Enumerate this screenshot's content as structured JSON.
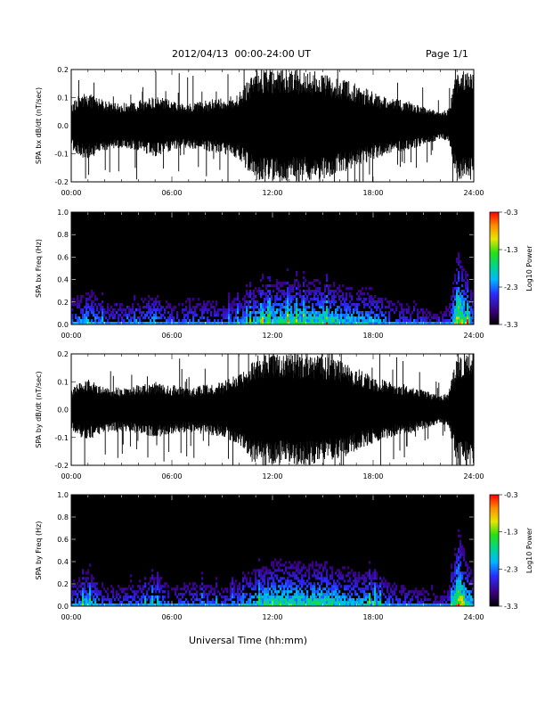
{
  "header": {
    "title": "2012/04/13  00:00-24:00 UT",
    "page": "Page 1/1"
  },
  "xaxis_title": "Universal Time (hh:mm)",
  "chart_data": [
    {
      "type": "line",
      "ylabel": "SPA bx dB/dt (nT/sec)",
      "xlim": [
        "00:00",
        "24:00"
      ],
      "ylim": [
        -0.2,
        0.2
      ],
      "xticks": [
        "00:00",
        "06:00",
        "12:00",
        "18:00",
        "24:00"
      ],
      "yticks": [
        "0.2",
        "0.1",
        "0.0",
        "-0.1",
        "-0.2"
      ],
      "envelope": {
        "hours": [
          0,
          0.5,
          1,
          2,
          3,
          4,
          5,
          6,
          7,
          8,
          9,
          10,
          10.5,
          11,
          12,
          13,
          14,
          15,
          16,
          17,
          18,
          19,
          20,
          21,
          22,
          22.5,
          23,
          24
        ],
        "amplitude": [
          0.08,
          0.11,
          0.12,
          0.09,
          0.08,
          0.09,
          0.11,
          0.09,
          0.08,
          0.09,
          0.1,
          0.12,
          0.16,
          0.2,
          0.2,
          0.2,
          0.2,
          0.19,
          0.17,
          0.15,
          0.12,
          0.1,
          0.09,
          0.07,
          0.05,
          0.06,
          0.2,
          0.2
        ]
      }
    },
    {
      "type": "heatmap",
      "ylabel": "SPA bx Freq (Hz)",
      "xlim": [
        "00:00",
        "24:00"
      ],
      "ylim": [
        0.0,
        1.0
      ],
      "xticks": [
        "00:00",
        "06:00",
        "12:00",
        "18:00",
        "24:00"
      ],
      "yticks": [
        "1.0",
        "0.8",
        "0.6",
        "0.4",
        "0.2",
        "0.0"
      ],
      "colorbar": {
        "label": "Log10 Power",
        "ticks": [
          "-0.3",
          "-1.3",
          "-2.3",
          "-3.3"
        ],
        "range": [
          -3.3,
          -0.3
        ]
      },
      "activity": {
        "hours": [
          0,
          1,
          2,
          3,
          4,
          5,
          6,
          7,
          8,
          9,
          10,
          11,
          12,
          13,
          14,
          15,
          16,
          17,
          18,
          19,
          20,
          21,
          22,
          22.5,
          23,
          24
        ],
        "level": [
          0.35,
          0.5,
          0.3,
          0.3,
          0.35,
          0.45,
          0.3,
          0.35,
          0.35,
          0.3,
          0.4,
          0.55,
          0.6,
          0.65,
          0.6,
          0.65,
          0.55,
          0.5,
          0.5,
          0.35,
          0.3,
          0.25,
          0.2,
          0.3,
          1.0,
          0.4
        ]
      }
    },
    {
      "type": "line",
      "ylabel": "SPA by dB/dt (nT/sec)",
      "xlim": [
        "00:00",
        "24:00"
      ],
      "ylim": [
        -0.2,
        0.2
      ],
      "xticks": [
        "00:00",
        "06:00",
        "12:00",
        "18:00",
        "24:00"
      ],
      "yticks": [
        "0.2",
        "0.1",
        "0.0",
        "-0.1",
        "-0.2"
      ],
      "envelope": {
        "hours": [
          0,
          0.5,
          1,
          2,
          3,
          4,
          5,
          6,
          7,
          8,
          9,
          10,
          10.5,
          11,
          12,
          13,
          14,
          15,
          16,
          17,
          18,
          19,
          20,
          21,
          22,
          22.5,
          23,
          24
        ],
        "amplitude": [
          0.07,
          0.1,
          0.11,
          0.08,
          0.08,
          0.09,
          0.1,
          0.09,
          0.08,
          0.09,
          0.1,
          0.13,
          0.17,
          0.2,
          0.2,
          0.2,
          0.2,
          0.19,
          0.18,
          0.15,
          0.12,
          0.1,
          0.09,
          0.07,
          0.05,
          0.06,
          0.2,
          0.2
        ]
      }
    },
    {
      "type": "heatmap",
      "ylabel": "SPA by Freq (Hz)",
      "xlim": [
        "00:00",
        "24:00"
      ],
      "ylim": [
        0.0,
        1.0
      ],
      "xticks": [
        "00:00",
        "06:00",
        "12:00",
        "18:00",
        "24:00"
      ],
      "yticks": [
        "1.0",
        "0.8",
        "0.6",
        "0.4",
        "0.2",
        "0.0"
      ],
      "colorbar": {
        "label": "Log10 Power",
        "ticks": [
          "-0.3",
          "-1.3",
          "-2.3",
          "-3.3"
        ],
        "range": [
          -3.3,
          -0.3
        ]
      },
      "activity": {
        "hours": [
          0,
          1,
          2,
          3,
          4,
          5,
          6,
          7,
          8,
          9,
          10,
          11,
          12,
          13,
          14,
          15,
          16,
          17,
          18,
          19,
          20,
          21,
          22,
          22.5,
          23,
          24
        ],
        "level": [
          0.35,
          0.5,
          0.3,
          0.3,
          0.35,
          0.45,
          0.3,
          0.35,
          0.35,
          0.3,
          0.4,
          0.55,
          0.65,
          0.65,
          0.6,
          0.65,
          0.55,
          0.5,
          0.5,
          0.35,
          0.3,
          0.25,
          0.2,
          0.3,
          1.0,
          0.4
        ]
      }
    }
  ]
}
